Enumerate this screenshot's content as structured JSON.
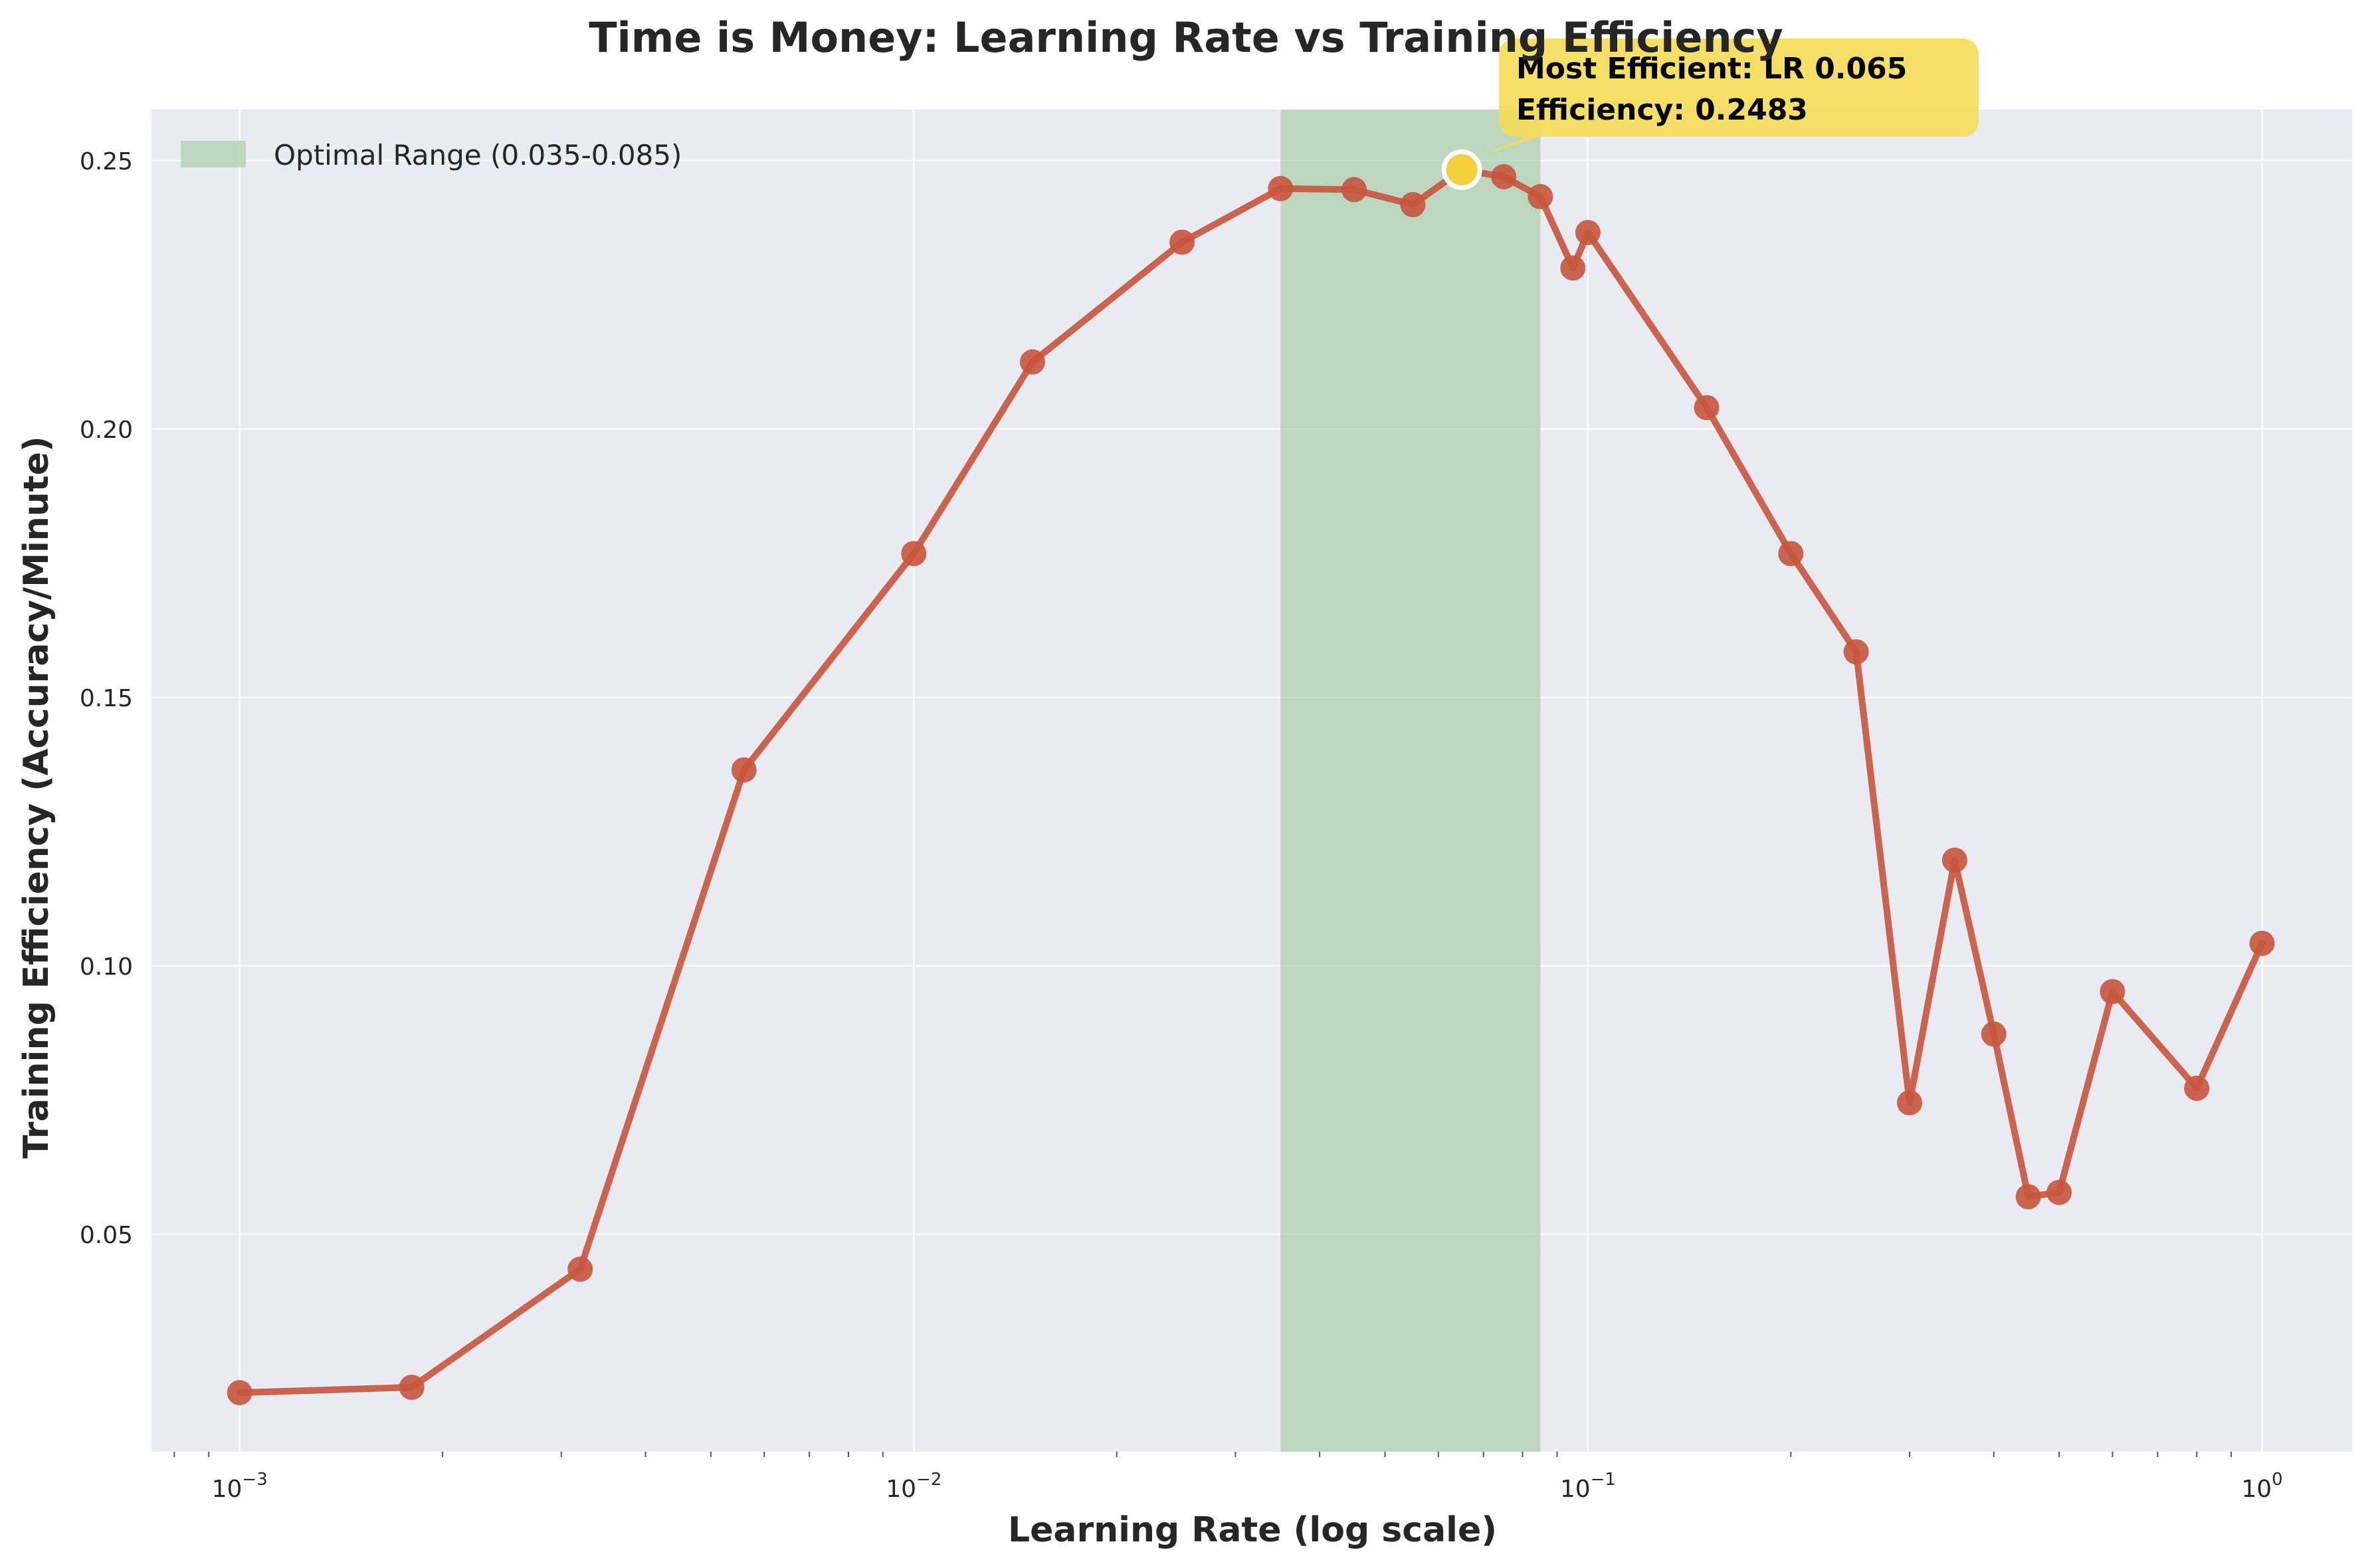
{
  "chart_data": {
    "type": "line",
    "title": "Time is Money: Learning Rate vs Training Efficiency",
    "xlabel": "Learning Rate (log scale)",
    "ylabel": "Training Efficiency (Accuracy/Minute)",
    "x_scale": "log",
    "xlim": [
      0.00074,
      1.36
    ],
    "ylim": [
      0.0095,
      0.2595
    ],
    "x_ticks": [
      {
        "value": 0.001,
        "base": "10",
        "exp": "−3"
      },
      {
        "value": 0.01,
        "base": "10",
        "exp": "−2"
      },
      {
        "value": 0.1,
        "base": "10",
        "exp": "−1"
      },
      {
        "value": 1,
        "base": "10",
        "exp": "0"
      }
    ],
    "y_ticks": [
      {
        "value": 0.05,
        "label": "0.05"
      },
      {
        "value": 0.1,
        "label": "0.10"
      },
      {
        "value": 0.15,
        "label": "0.15"
      },
      {
        "value": 0.2,
        "label": "0.20"
      },
      {
        "value": 0.25,
        "label": "0.25"
      }
    ],
    "grid": true,
    "legend_position": "top-left",
    "colors": {
      "background": "#eaeaf2",
      "line": "#c8553d",
      "marker": "#c8553d",
      "highlight": "#f4d03f",
      "band": "#a8cfa8",
      "annotation_box": "#f4dc5a"
    },
    "series": [
      {
        "x": [
          0.001,
          0.0018,
          0.0032,
          0.0056,
          0.01,
          0.015,
          0.025,
          0.035,
          0.045,
          0.055,
          0.065,
          0.075,
          0.085,
          0.095,
          0.1,
          0.15,
          0.2,
          0.25,
          0.3,
          0.35,
          0.4,
          0.45,
          0.5,
          0.6,
          0.8,
          1.0
        ],
        "y": [
          0.0205,
          0.0215,
          0.0435,
          0.1365,
          0.1768,
          0.2125,
          0.2348,
          0.2448,
          0.2446,
          0.2418,
          0.2483,
          0.247,
          0.2433,
          0.23,
          0.2366,
          0.204,
          0.1768,
          0.1585,
          0.0745,
          0.1197,
          0.0873,
          0.057,
          0.0578,
          0.0952,
          0.0772,
          0.1042
        ]
      }
    ],
    "shaded_region": {
      "x_range": [
        0.035,
        0.085
      ],
      "label": "Optimal Range (0.035-0.085)"
    },
    "highlight_point": {
      "x": 0.065,
      "y": 0.2483
    },
    "annotation": {
      "lines": [
        "Most Efficient: LR 0.065",
        "Efficiency: 0.2483"
      ]
    }
  }
}
